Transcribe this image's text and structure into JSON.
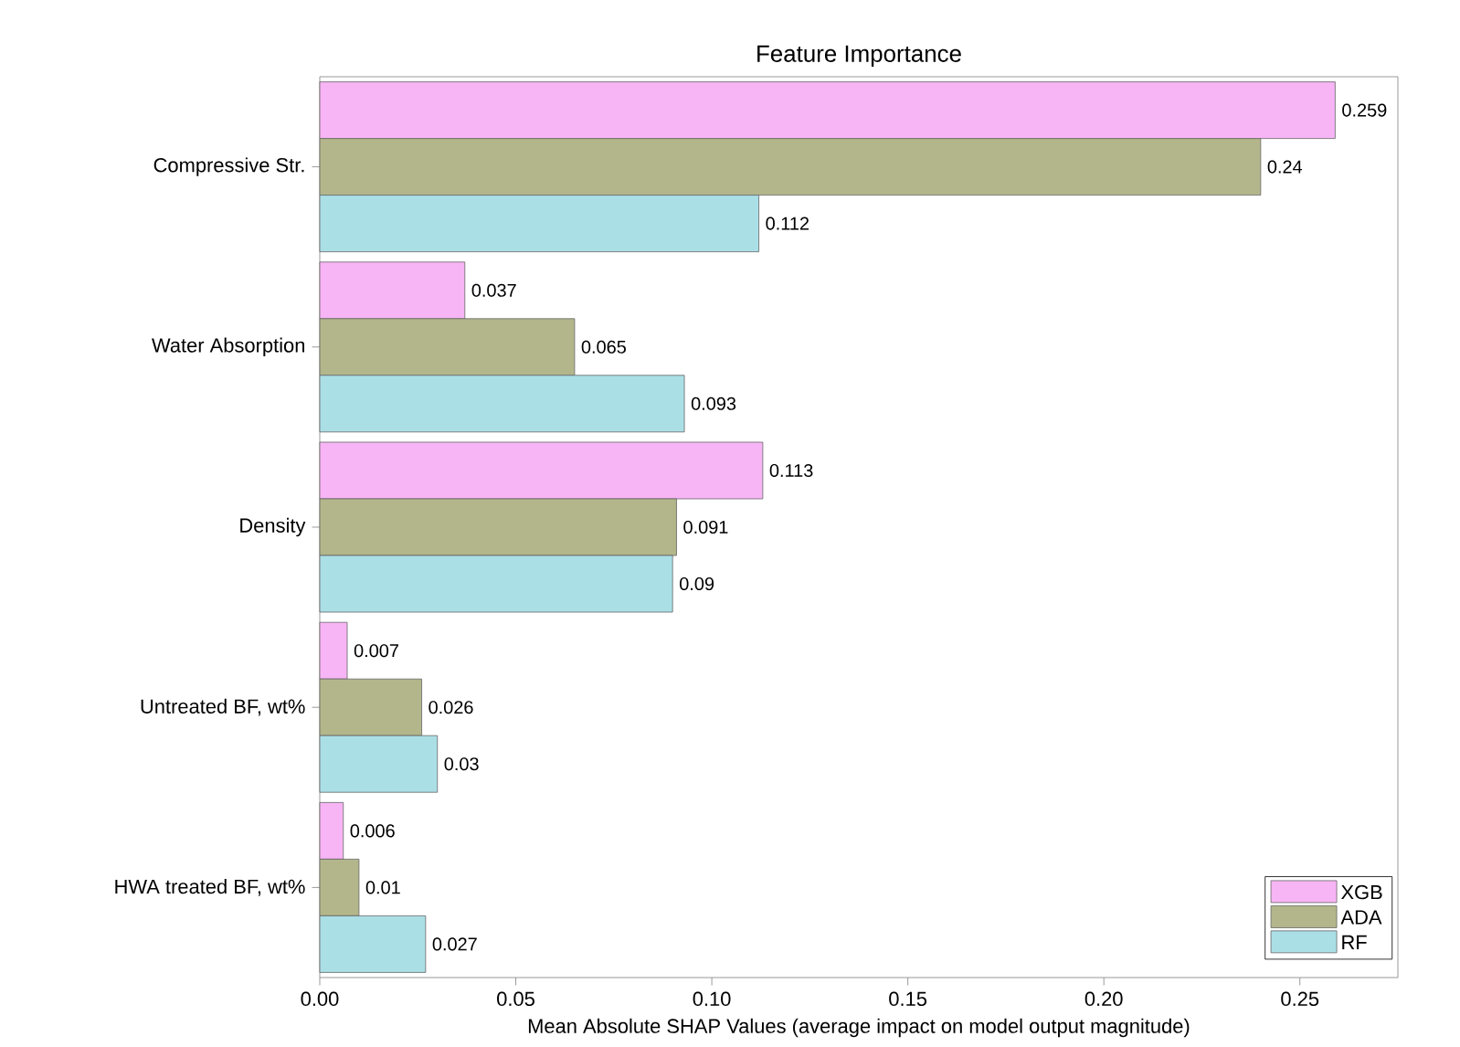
{
  "chart_data": {
    "type": "bar",
    "orientation": "horizontal",
    "title": "Feature Importance",
    "xlabel": "Mean Absolute SHAP Values (average impact on model output magnitude)",
    "categories": [
      "Compressive Str.",
      "Water Absorption",
      "Density",
      "Untreated BF, wt%",
      "HWA treated BF, wt%"
    ],
    "series": [
      {
        "name": "XGB",
        "color": "#f7b5f5",
        "values": [
          0.259,
          0.037,
          0.113,
          0.007,
          0.006
        ],
        "value_labels": [
          "0.259",
          "0.037",
          "0.113",
          "0.007",
          "0.006"
        ]
      },
      {
        "name": "ADA",
        "color": "#b3b68a",
        "values": [
          0.24,
          0.065,
          0.091,
          0.026,
          0.01
        ],
        "value_labels": [
          "0.24",
          "0.065",
          "0.091",
          "0.026",
          "0.01"
        ]
      },
      {
        "name": "RF",
        "color": "#abdfe6",
        "values": [
          0.112,
          0.093,
          0.09,
          0.03,
          0.027
        ],
        "value_labels": [
          "0.112",
          "0.093",
          "0.09",
          "0.03",
          "0.027"
        ]
      }
    ],
    "xlim": [
      0,
      0.275
    ],
    "xticks": [
      {
        "value": 0,
        "label": "0.00"
      },
      {
        "value": 0.05,
        "label": "0.05"
      },
      {
        "value": 0.1,
        "label": "0.10"
      },
      {
        "value": 0.15,
        "label": "0.15"
      },
      {
        "value": 0.2,
        "label": "0.20"
      },
      {
        "value": 0.25,
        "label": "0.25"
      }
    ],
    "legend": "bottom right",
    "grid": false
  }
}
